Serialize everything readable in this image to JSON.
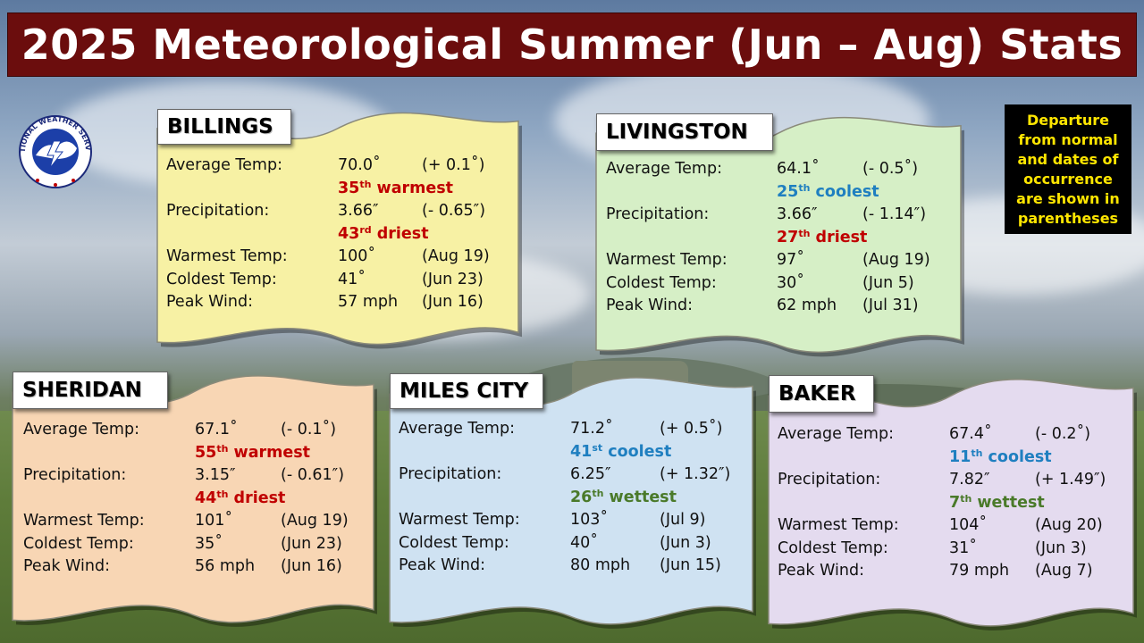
{
  "title": "2025 Meteorological Summer (Jun – Aug) Stats",
  "logo": {
    "icon": "nws-logo-icon",
    "text": "NATIONAL WEATHER SERVICE"
  },
  "note": "Departure\nfrom normal\nand dates of\noccurrence\nare shown in\nparentheses",
  "labels": {
    "avg": "Average Temp:",
    "precip": "Precipitation:",
    "warmest": "Warmest Temp:",
    "coldest": "Coldest Temp:",
    "wind": "Peak Wind:"
  },
  "colors": {
    "billings": "#f7f1a4",
    "livingston": "#d6efc6",
    "sheridan": "#f8d6b4",
    "miles_city": "#cfe2f2",
    "baker": "#e4dbef",
    "title_bar": "#6b0d0d",
    "warm_rank": "#c00000",
    "cool_rank": "#1f7fc0",
    "wet_rank": "#4a7a2a"
  },
  "stations": {
    "billings": {
      "name": "BILLINGS",
      "avg": "70.0˚",
      "avg_dep": "(+ 0.1˚)",
      "avg_rank_num": "35",
      "avg_rank_sup": "th",
      "avg_rank_word": " warmest",
      "precip": "3.66″",
      "precip_dep": "(- 0.65″)",
      "precip_rank_num": "43",
      "precip_rank_sup": "rd",
      "precip_rank_word": " driest",
      "warmest": "100˚",
      "warmest_date": "(Aug 19)",
      "coldest": "41˚",
      "coldest_date": "(Jun 23)",
      "wind": "57 mph",
      "wind_date": "(Jun 16)"
    },
    "livingston": {
      "name": "LIVINGSTON",
      "avg": "64.1˚",
      "avg_dep": "(- 0.5˚)",
      "avg_rank_num": "25",
      "avg_rank_sup": "th",
      "avg_rank_word": " coolest",
      "precip": "3.66″",
      "precip_dep": "(- 1.14″)",
      "precip_rank_num": "27",
      "precip_rank_sup": "th",
      "precip_rank_word": " driest",
      "warmest": "97˚",
      "warmest_date": "(Aug 19)",
      "coldest": "30˚",
      "coldest_date": "(Jun 5)",
      "wind": "62 mph",
      "wind_date": "(Jul 31)"
    },
    "sheridan": {
      "name": "SHERIDAN",
      "avg": "67.1˚",
      "avg_dep": "(- 0.1˚)",
      "avg_rank_num": "55",
      "avg_rank_sup": "th",
      "avg_rank_word": " warmest",
      "precip": "3.15″",
      "precip_dep": "(- 0.61″)",
      "precip_rank_num": "44",
      "precip_rank_sup": "th",
      "precip_rank_word": " driest",
      "warmest": "101˚",
      "warmest_date": "(Aug 19)",
      "coldest": "35˚",
      "coldest_date": "(Jun 23)",
      "wind": "56 mph",
      "wind_date": "(Jun 16)"
    },
    "miles_city": {
      "name": "MILES CITY",
      "avg": "71.2˚",
      "avg_dep": "(+ 0.5˚)",
      "avg_rank_num": "41",
      "avg_rank_sup": "st",
      "avg_rank_word": " coolest",
      "precip": "6.25″",
      "precip_dep": "(+ 1.32″)",
      "precip_rank_num": "26",
      "precip_rank_sup": "th",
      "precip_rank_word": " wettest",
      "warmest": "103˚",
      "warmest_date": "(Jul 9)",
      "coldest": "40˚",
      "coldest_date": "(Jun 3)",
      "wind": "80 mph",
      "wind_date": "(Jun 15)"
    },
    "baker": {
      "name": "BAKER",
      "avg": "67.4˚",
      "avg_dep": "(- 0.2˚)",
      "avg_rank_num": "11",
      "avg_rank_sup": "th",
      "avg_rank_word": " coolest",
      "precip": "7.82″",
      "precip_dep": "(+ 1.49″)",
      "precip_rank_num": "7",
      "precip_rank_sup": "th",
      "precip_rank_word": " wettest",
      "warmest": "104˚",
      "warmest_date": "(Aug 20)",
      "coldest": "31˚",
      "coldest_date": "(Jun 3)",
      "wind": "79 mph",
      "wind_date": "(Aug 7)"
    }
  }
}
